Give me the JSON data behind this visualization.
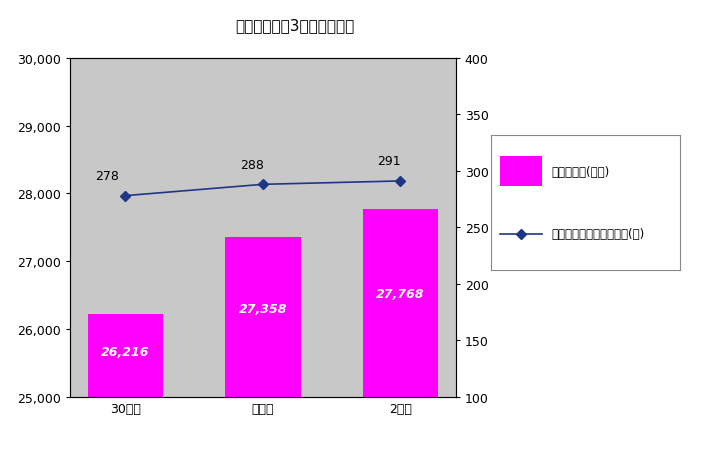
{
  "title": "（表２）過去3年間のごみ量",
  "categories": [
    "30年度",
    "元年度",
    "2年度"
  ],
  "bar_values": [
    26216,
    27358,
    27768
  ],
  "line_values": [
    278,
    288,
    291
  ],
  "bar_color": "#FF00FF",
  "line_color": "#1F3688",
  "bar_label": "年間ごみ量(トン)",
  "line_label": "一人あたりの年間ごみ量(㎎)",
  "ylim_left": [
    25000,
    30000
  ],
  "ylim_right": [
    100,
    400
  ],
  "yticks_left": [
    25000,
    26000,
    27000,
    28000,
    29000,
    30000
  ],
  "yticks_right": [
    100,
    150,
    200,
    250,
    300,
    350,
    400
  ],
  "plot_bg_color": "#C8C8C8",
  "fig_bg_color": "#FFFFFF",
  "bar_annotations": [
    "26,216",
    "27,358",
    "27,768"
  ],
  "line_annotations": [
    "278",
    "288",
    "291"
  ],
  "title_fontsize": 11,
  "tick_fontsize": 9,
  "annotation_fontsize": 9
}
